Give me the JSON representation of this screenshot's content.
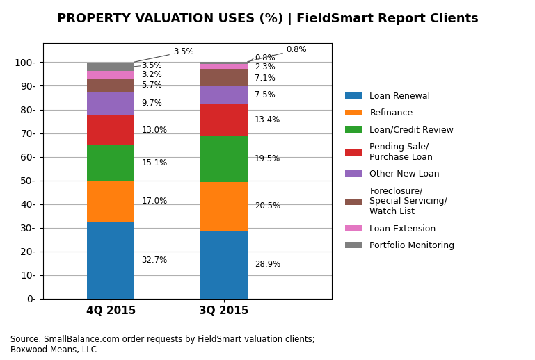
{
  "chart_data": {
    "type": "bar",
    "stacked": true,
    "title": "PROPERTY VALUATION USES (%) | FieldSmart Report Clients",
    "source": "Source: SmallBalance.com order requests by FieldSmart valuation clients;\nBoxwood Means, LLC",
    "categories": [
      "4Q 2015",
      "3Q 2015"
    ],
    "series": [
      {
        "name": "Loan Renewal",
        "values": [
          32.7,
          28.9
        ],
        "value_labels": [
          "32.7%",
          "28.9%"
        ]
      },
      {
        "name": "Refinance",
        "values": [
          17.0,
          20.5
        ],
        "value_labels": [
          "17.0%",
          "20.5%"
        ]
      },
      {
        "name": "Loan/Credit Review",
        "values": [
          15.1,
          19.5
        ],
        "value_labels": [
          "15.1%",
          "19.5%"
        ]
      },
      {
        "name": "Pending Sale/\nPurchase Loan",
        "values": [
          13.0,
          13.4
        ],
        "value_labels": [
          "13.0%",
          "13.4%"
        ]
      },
      {
        "name": "Other-New Loan",
        "values": [
          9.7,
          7.5
        ],
        "value_labels": [
          "9.7%",
          "7.5%"
        ]
      },
      {
        "name": "Foreclosure/\nSpecial Servicing/\nWatch List",
        "values": [
          5.7,
          7.1
        ],
        "value_labels": [
          "5.7%",
          "7.1%"
        ]
      },
      {
        "name": "Loan Extension",
        "values": [
          3.2,
          2.3
        ],
        "value_labels": [
          "3.2%",
          "2.3%"
        ]
      },
      {
        "name": "Portfolio Monitoring",
        "values": [
          3.5,
          0.8
        ],
        "value_labels": [
          "3.5%",
          "0.8%"
        ]
      }
    ],
    "annotations": [
      {
        "category": "4Q 2015",
        "text": "3.5%"
      },
      {
        "category": "3Q 2015",
        "text": "0.8%"
      }
    ],
    "ylim": [
      0,
      108
    ],
    "yticks": [
      {
        "value": 0,
        "label": "0-"
      },
      {
        "value": 10,
        "label": "10-"
      },
      {
        "value": 20,
        "label": "20-"
      },
      {
        "value": 30,
        "label": "30-"
      },
      {
        "value": 40,
        "label": "40-"
      },
      {
        "value": 50,
        "label": "50-"
      },
      {
        "value": 60,
        "label": "60-"
      },
      {
        "value": 70,
        "label": "70-"
      },
      {
        "value": 80,
        "label": "80-"
      },
      {
        "value": 90,
        "label": "90-"
      },
      {
        "value": 100,
        "label": "100-"
      }
    ],
    "grid": "y",
    "data_labels": true,
    "legend": "center left"
  }
}
